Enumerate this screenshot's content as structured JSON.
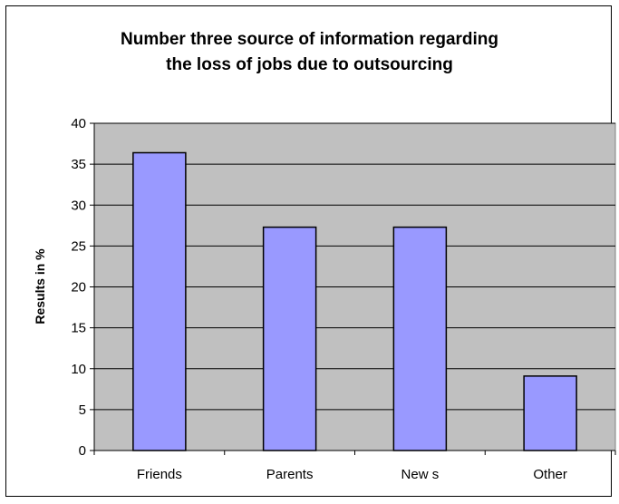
{
  "chart_data": {
    "type": "bar",
    "title_lines": [
      "Number three source of information regarding",
      "the loss of jobs due to outsourcing"
    ],
    "xlabel": "",
    "ylabel": "Results in %",
    "categories": [
      "Friends",
      "Parents",
      "New s",
      "Other"
    ],
    "values": [
      36.4,
      27.3,
      27.3,
      9.1
    ],
    "ylim": [
      0,
      40
    ],
    "yticks": [
      0,
      5,
      10,
      15,
      20,
      25,
      30,
      35,
      40
    ],
    "grid": true,
    "legend": "none",
    "colors": {
      "bar_fill": "#9999ff",
      "bar_stroke": "#000000",
      "plot_background": "#c0c0c0",
      "gridline": "#000000"
    }
  }
}
